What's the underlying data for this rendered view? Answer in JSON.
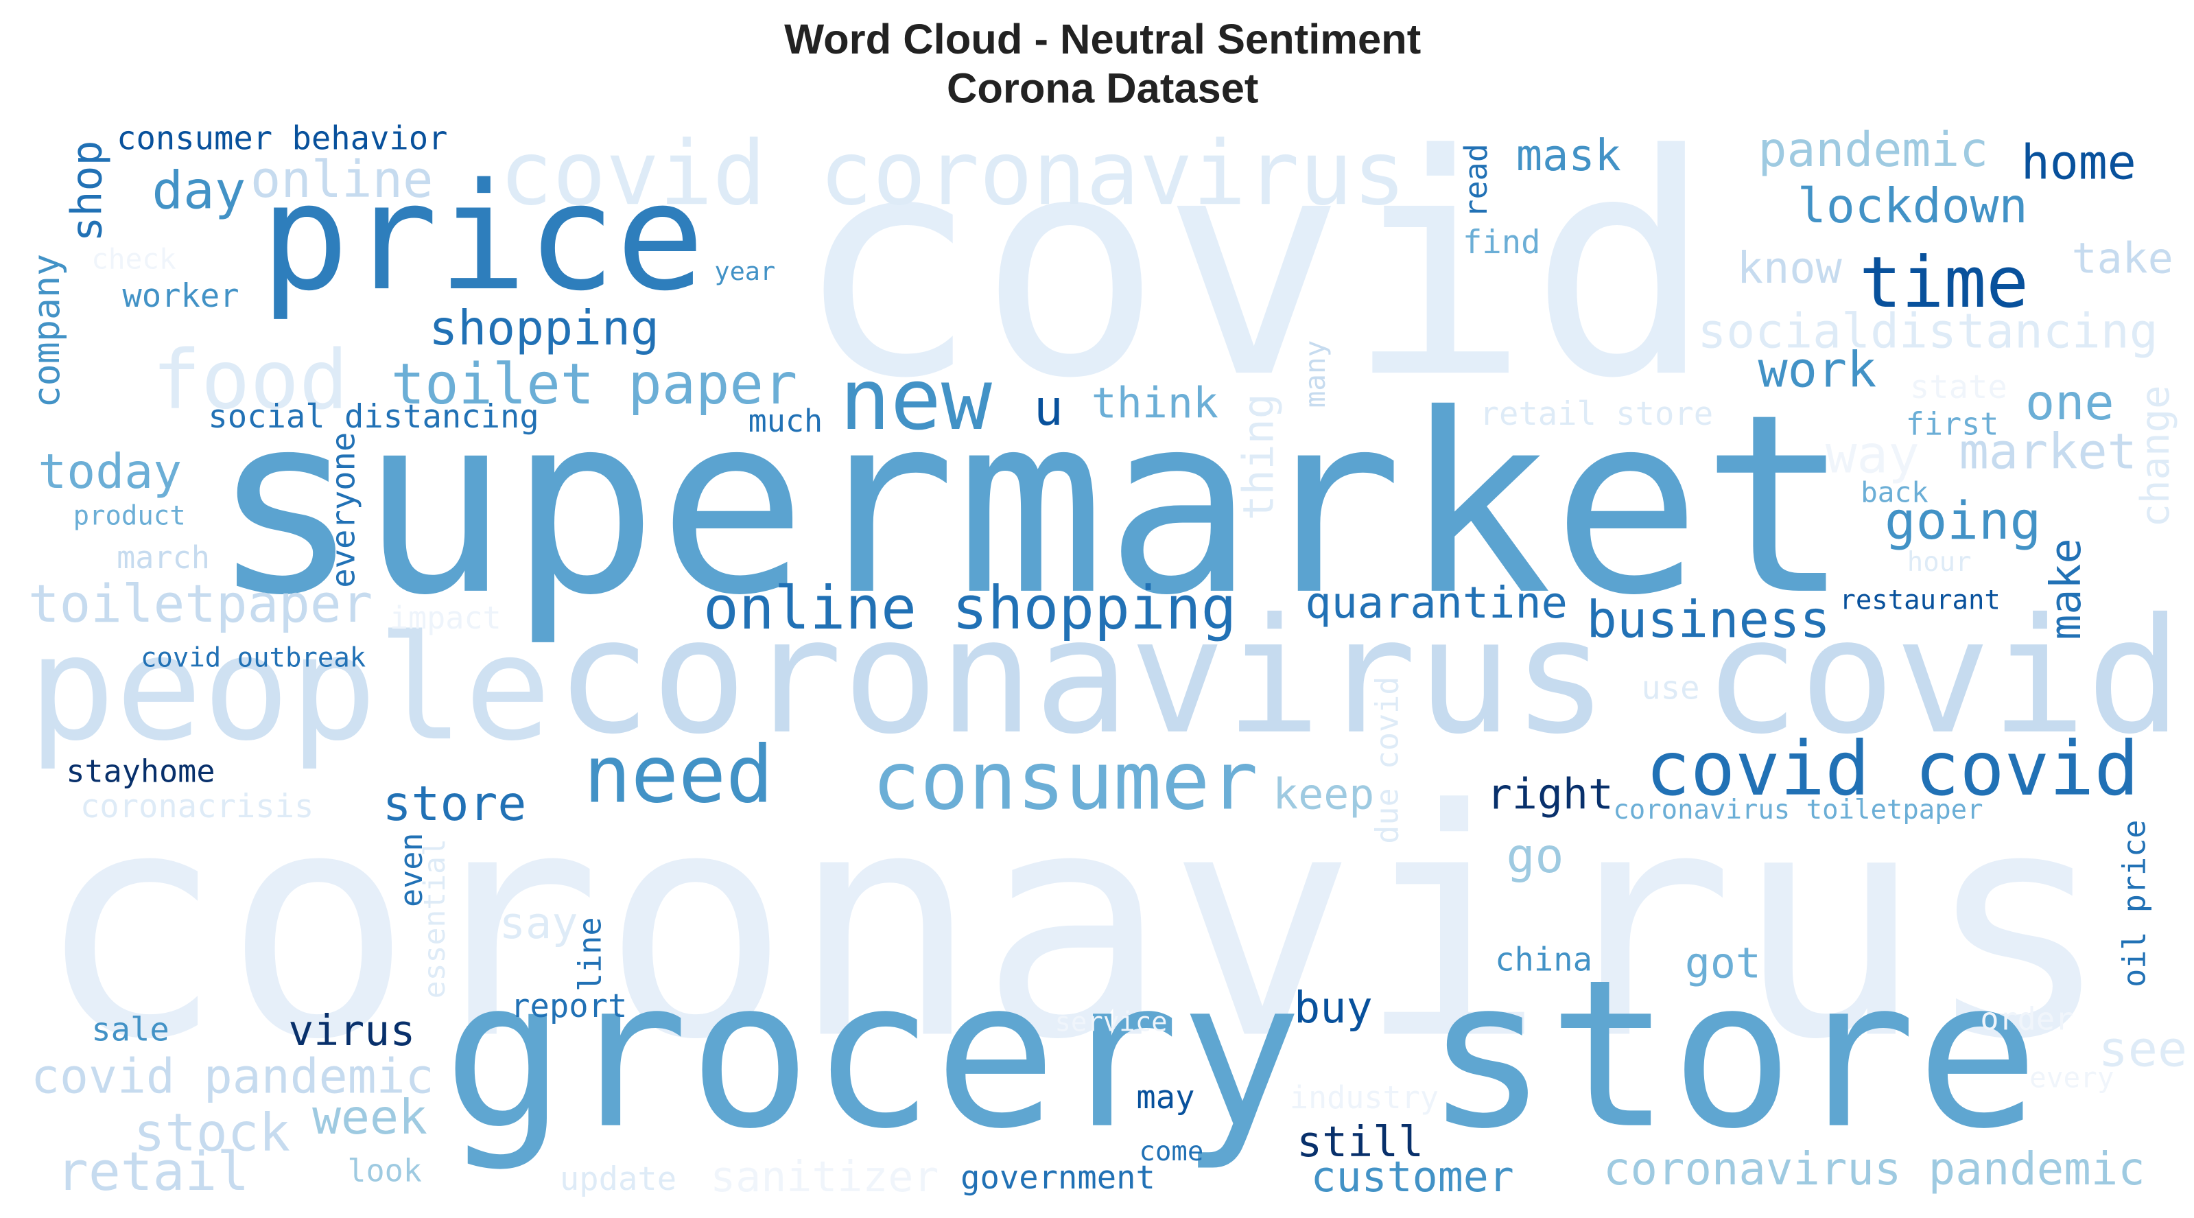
{
  "chart_data": {
    "type": "wordcloud",
    "title": "Word Cloud - Neutral Sentiment",
    "subtitle": "Corona Dataset",
    "words": [
      {
        "text": "covid",
        "color": "#e3eef9"
      },
      {
        "text": "coronavirus",
        "color": "#e6eff9"
      },
      {
        "text": "supermarket",
        "color": "#5ba3d0"
      },
      {
        "text": "grocery store",
        "color": "#5fa6d1"
      },
      {
        "text": "coronavirus covid",
        "color": "#c6dbef"
      },
      {
        "text": "people",
        "color": "#cfe1f2"
      },
      {
        "text": "price",
        "color": "#2e7ebc"
      },
      {
        "text": "covid coronavirus",
        "color": "#deebf7"
      },
      {
        "text": "online shopping",
        "color": "#2171b5"
      },
      {
        "text": "covid covid",
        "color": "#2171b5"
      },
      {
        "text": "consumer",
        "color": "#6baed6"
      },
      {
        "text": "need",
        "color": "#4292c6"
      },
      {
        "text": "new",
        "color": "#4292c6"
      },
      {
        "text": "toilet paper",
        "color": "#6baed6"
      },
      {
        "text": "shopping",
        "color": "#2171b5"
      },
      {
        "text": "food",
        "color": "#deebf7"
      },
      {
        "text": "online",
        "color": "#c6dbef"
      },
      {
        "text": "day",
        "color": "#4292c6"
      },
      {
        "text": "consumer behavior",
        "color": "#08519c"
      },
      {
        "text": "shop",
        "color": "#2171b5"
      },
      {
        "text": "company",
        "color": "#4292c6"
      },
      {
        "text": "check",
        "color": "#f0f5fb"
      },
      {
        "text": "worker",
        "color": "#4292c6"
      },
      {
        "text": "year",
        "color": "#4292c6"
      },
      {
        "text": "social distancing",
        "color": "#2171b5"
      },
      {
        "text": "today",
        "color": "#6baed6"
      },
      {
        "text": "product",
        "color": "#6baed6"
      },
      {
        "text": "march",
        "color": "#c6dbef"
      },
      {
        "text": "toiletpaper",
        "color": "#c6dbef"
      },
      {
        "text": "impact",
        "color": "#eef4fb"
      },
      {
        "text": "covid outbreak",
        "color": "#2171b5"
      },
      {
        "text": "everyone",
        "color": "#2171b5"
      },
      {
        "text": "much",
        "color": "#2171b5"
      },
      {
        "text": "u",
        "color": "#08519c"
      },
      {
        "text": "think",
        "color": "#6baed6"
      },
      {
        "text": "thing",
        "color": "#deebf7"
      },
      {
        "text": "many",
        "color": "#c6dbef"
      },
      {
        "text": "mask",
        "color": "#4292c6"
      },
      {
        "text": "read",
        "color": "#2171b5"
      },
      {
        "text": "find",
        "color": "#6baed6"
      },
      {
        "text": "pandemic",
        "color": "#9ecae1"
      },
      {
        "text": "home",
        "color": "#08519c"
      },
      {
        "text": "lockdown",
        "color": "#4292c6"
      },
      {
        "text": "know",
        "color": "#c6dbef"
      },
      {
        "text": "time",
        "color": "#08519c"
      },
      {
        "text": "take",
        "color": "#c6dbef"
      },
      {
        "text": "socialdistancing",
        "color": "#deebf7"
      },
      {
        "text": "work",
        "color": "#4292c6"
      },
      {
        "text": "state",
        "color": "#f0f5fb"
      },
      {
        "text": "retail store",
        "color": "#deebf7"
      },
      {
        "text": "first",
        "color": "#6baed6"
      },
      {
        "text": "one",
        "color": "#6baed6"
      },
      {
        "text": "way",
        "color": "#f0f5fb"
      },
      {
        "text": "market",
        "color": "#c6dbef"
      },
      {
        "text": "change",
        "color": "#deebf7"
      },
      {
        "text": "back",
        "color": "#6baed6"
      },
      {
        "text": "going",
        "color": "#4292c6"
      },
      {
        "text": "hour",
        "color": "#deebf7"
      },
      {
        "text": "make",
        "color": "#2171b5"
      },
      {
        "text": "restaurant",
        "color": "#08519c"
      },
      {
        "text": "business",
        "color": "#2171b5"
      },
      {
        "text": "quarantine",
        "color": "#2171b5"
      },
      {
        "text": "use",
        "color": "#deebf7"
      },
      {
        "text": "due covid",
        "color": "#deebf7"
      },
      {
        "text": "stayhome",
        "color": "#08306b"
      },
      {
        "text": "coronacrisis",
        "color": "#deebf7"
      },
      {
        "text": "store",
        "color": "#2171b5"
      },
      {
        "text": "keep",
        "color": "#9ecae1"
      },
      {
        "text": "right",
        "color": "#08306b"
      },
      {
        "text": "coronavirus toiletpaper",
        "color": "#6baed6"
      },
      {
        "text": "go",
        "color": "#9ecae1"
      },
      {
        "text": "oil price",
        "color": "#2171b5"
      },
      {
        "text": "even",
        "color": "#2171b5"
      },
      {
        "text": "essential",
        "color": "#deebf7"
      },
      {
        "text": "say",
        "color": "#deebf7"
      },
      {
        "text": "line",
        "color": "#2171b5"
      },
      {
        "text": "china",
        "color": "#4292c6"
      },
      {
        "text": "got",
        "color": "#6baed6"
      },
      {
        "text": "report",
        "color": "#2171b5"
      },
      {
        "text": "buy",
        "color": "#08519c"
      },
      {
        "text": "sale",
        "color": "#4292c6"
      },
      {
        "text": "virus",
        "color": "#08306b"
      },
      {
        "text": "service",
        "color": "#f0f5fb"
      },
      {
        "text": "order",
        "color": "#f0f5fb"
      },
      {
        "text": "see",
        "color": "#deebf7"
      },
      {
        "text": "every",
        "color": "#f0f5fb"
      },
      {
        "text": "covid pandemic",
        "color": "#c6dbef"
      },
      {
        "text": "week",
        "color": "#9ecae1"
      },
      {
        "text": "stock",
        "color": "#c6dbef"
      },
      {
        "text": "may",
        "color": "#08519c"
      },
      {
        "text": "industry",
        "color": "#eef4fb"
      },
      {
        "text": "still",
        "color": "#08306b"
      },
      {
        "text": "come",
        "color": "#2171b5"
      },
      {
        "text": "retail",
        "color": "#c6dbef"
      },
      {
        "text": "look",
        "color": "#9ecae1"
      },
      {
        "text": "update",
        "color": "#deebf7"
      },
      {
        "text": "sanitizer",
        "color": "#f0f5fb"
      },
      {
        "text": "government",
        "color": "#2171b5"
      },
      {
        "text": "customer",
        "color": "#4292c6"
      },
      {
        "text": "coronavirus pandemic",
        "color": "#9ecae1"
      }
    ]
  }
}
